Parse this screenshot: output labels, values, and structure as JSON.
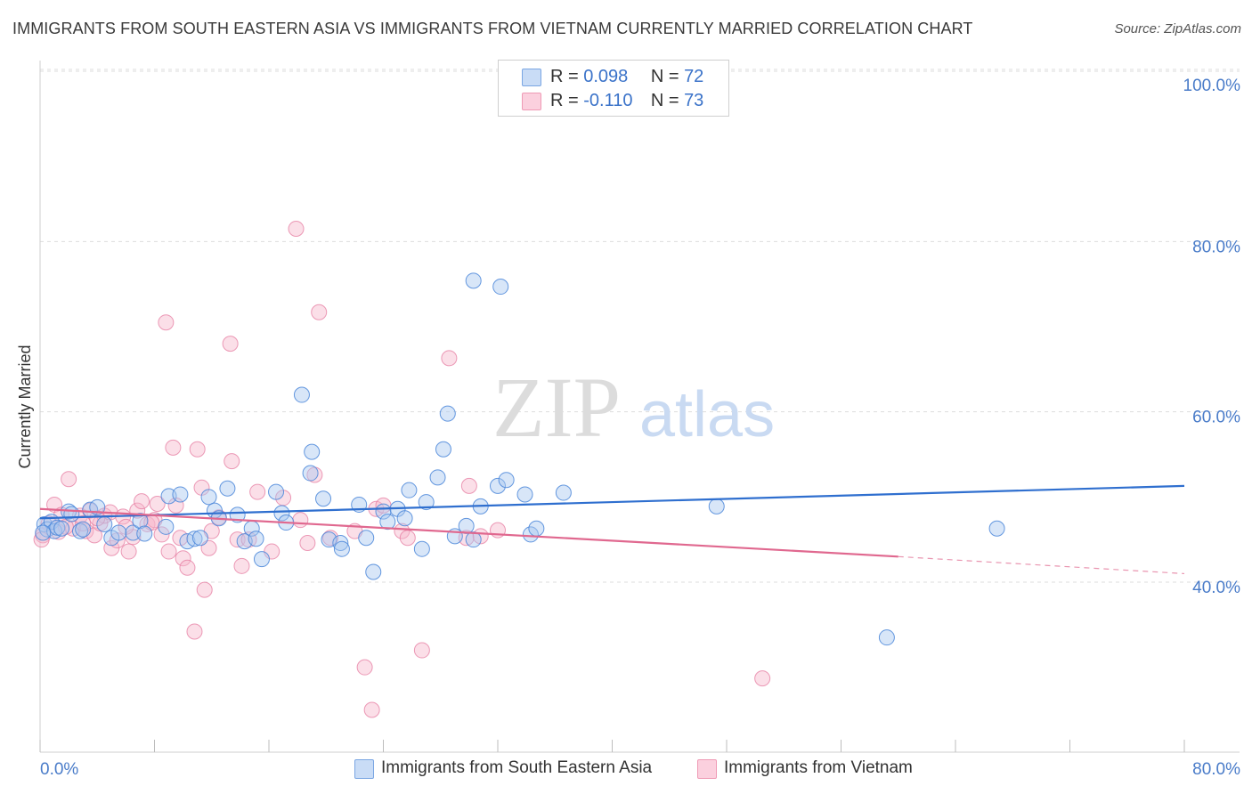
{
  "title": "IMMIGRANTS FROM SOUTH EASTERN ASIA VS IMMIGRANTS FROM VIETNAM CURRENTLY MARRIED CORRELATION CHART",
  "source": "Source: ZipAtlas.com",
  "watermark": {
    "zip": "ZIP",
    "atlas": "atlas"
  },
  "legend": {
    "rows": [
      {
        "r_label": "R =",
        "r_value": "0.098",
        "n_label": "N =",
        "n_value": "72",
        "color": "#a9c7f0"
      },
      {
        "r_label": "R =",
        "r_value": "-0.110",
        "n_label": "N =",
        "n_value": "73",
        "color": "#f7b8cc"
      }
    ]
  },
  "bottom_legend": [
    {
      "label": "Immigrants from South Eastern Asia",
      "color": "#a9c7f0"
    },
    {
      "label": "Immigrants from Vietnam",
      "color": "#f7b8cc"
    }
  ],
  "chart_data": {
    "type": "scatter",
    "title": "IMMIGRANTS FROM SOUTH EASTERN ASIA VS IMMIGRANTS FROM VIETNAM CURRENTLY MARRIED CORRELATION CHART",
    "xlabel": "",
    "ylabel": "Currently Married",
    "xlim": [
      0,
      80
    ],
    "ylim": [
      20,
      102
    ],
    "x_tick_labels": [
      "0.0%",
      "80.0%"
    ],
    "y_ticks": [
      40,
      60,
      80,
      100
    ],
    "y_tick_labels": [
      "40.0%",
      "60.0%",
      "80.0%",
      "100.0%"
    ],
    "grid": true,
    "legend_position": "top-center",
    "series": [
      {
        "name": "Immigrants from South Eastern Asia",
        "color": "#4a86d9",
        "fill": "#a9c7f0",
        "trend": {
          "x": [
            0,
            80
          ],
          "y": [
            47.5,
            51.3
          ],
          "style": "solid",
          "line_color": "#2f6fcf"
        },
        "points": [
          [
            0.3,
            46.8
          ],
          [
            0.5,
            46.2
          ],
          [
            0.8,
            47.1
          ],
          [
            1.0,
            46.0
          ],
          [
            1.2,
            46.4
          ],
          [
            1.5,
            46.3
          ],
          [
            2.0,
            48.3
          ],
          [
            2.2,
            48.0
          ],
          [
            2.8,
            46.0
          ],
          [
            3.5,
            48.5
          ],
          [
            4.0,
            48.8
          ],
          [
            4.5,
            46.8
          ],
          [
            5.0,
            45.2
          ],
          [
            5.5,
            45.8
          ],
          [
            6.5,
            45.8
          ],
          [
            7.0,
            47.2
          ],
          [
            7.3,
            45.7
          ],
          [
            8.8,
            46.5
          ],
          [
            9.0,
            50.1
          ],
          [
            9.8,
            50.3
          ],
          [
            10.3,
            44.8
          ],
          [
            10.8,
            45.1
          ],
          [
            11.2,
            45.2
          ],
          [
            11.8,
            50.0
          ],
          [
            12.2,
            48.4
          ],
          [
            12.5,
            47.5
          ],
          [
            13.1,
            51.0
          ],
          [
            13.8,
            47.9
          ],
          [
            14.3,
            44.8
          ],
          [
            14.8,
            46.3
          ],
          [
            15.1,
            45.1
          ],
          [
            15.5,
            42.7
          ],
          [
            16.5,
            50.6
          ],
          [
            16.9,
            48.1
          ],
          [
            17.2,
            47.0
          ],
          [
            18.3,
            62.0
          ],
          [
            18.9,
            52.8
          ],
          [
            19.0,
            55.3
          ],
          [
            19.8,
            49.8
          ],
          [
            20.2,
            45.0
          ],
          [
            21.0,
            44.6
          ],
          [
            21.1,
            43.9
          ],
          [
            22.3,
            49.1
          ],
          [
            22.8,
            45.2
          ],
          [
            23.3,
            41.2
          ],
          [
            24.0,
            48.3
          ],
          [
            24.3,
            47.1
          ],
          [
            25.0,
            48.6
          ],
          [
            25.5,
            47.5
          ],
          [
            25.8,
            50.8
          ],
          [
            26.7,
            43.9
          ],
          [
            27.0,
            49.4
          ],
          [
            27.8,
            52.3
          ],
          [
            28.2,
            55.6
          ],
          [
            28.5,
            59.8
          ],
          [
            29.0,
            45.4
          ],
          [
            29.8,
            46.6
          ],
          [
            30.3,
            45.0
          ],
          [
            30.8,
            48.9
          ],
          [
            30.3,
            75.4
          ],
          [
            32.0,
            51.3
          ],
          [
            32.2,
            74.7
          ],
          [
            32.6,
            52.0
          ],
          [
            33.9,
            50.3
          ],
          [
            34.3,
            45.6
          ],
          [
            34.7,
            46.3
          ],
          [
            36.6,
            50.5
          ],
          [
            47.3,
            48.9
          ],
          [
            59.2,
            33.5
          ],
          [
            66.9,
            46.3
          ],
          [
            0.2,
            45.8
          ],
          [
            3.0,
            46.2
          ]
        ]
      },
      {
        "name": "Immigrants from Vietnam",
        "color": "#e57ba0",
        "fill": "#f7b8cc",
        "trend": {
          "x": [
            0,
            60,
            80
          ],
          "y": [
            48.6,
            43.0,
            41.0
          ],
          "style": "solid-then-dashed",
          "line_color": "#e0688f"
        },
        "points": [
          [
            0.2,
            45.5
          ],
          [
            0.6,
            46.9
          ],
          [
            1.0,
            49.1
          ],
          [
            1.3,
            45.9
          ],
          [
            1.5,
            47.9
          ],
          [
            2.0,
            52.1
          ],
          [
            2.3,
            46.3
          ],
          [
            2.8,
            47.8
          ],
          [
            3.2,
            46.0
          ],
          [
            3.5,
            48.4
          ],
          [
            3.8,
            45.5
          ],
          [
            4.2,
            46.9
          ],
          [
            4.5,
            47.8
          ],
          [
            4.9,
            48.2
          ],
          [
            5.0,
            44.0
          ],
          [
            5.4,
            44.9
          ],
          [
            5.8,
            47.7
          ],
          [
            6.2,
            43.6
          ],
          [
            6.5,
            45.3
          ],
          [
            6.8,
            48.4
          ],
          [
            7.1,
            49.5
          ],
          [
            7.5,
            46.8
          ],
          [
            8.0,
            47.3
          ],
          [
            8.2,
            49.2
          ],
          [
            8.5,
            45.6
          ],
          [
            8.8,
            70.5
          ],
          [
            9.0,
            43.6
          ],
          [
            9.3,
            55.8
          ],
          [
            9.8,
            45.2
          ],
          [
            10.0,
            42.8
          ],
          [
            10.3,
            41.7
          ],
          [
            10.8,
            34.2
          ],
          [
            11.0,
            55.6
          ],
          [
            11.3,
            51.1
          ],
          [
            11.5,
            39.1
          ],
          [
            11.8,
            44.0
          ],
          [
            12.5,
            47.6
          ],
          [
            13.3,
            68.0
          ],
          [
            13.4,
            54.2
          ],
          [
            13.8,
            45.0
          ],
          [
            14.1,
            41.9
          ],
          [
            14.6,
            45.0
          ],
          [
            15.2,
            50.6
          ],
          [
            16.2,
            43.6
          ],
          [
            17.0,
            49.9
          ],
          [
            17.9,
            81.5
          ],
          [
            18.2,
            47.3
          ],
          [
            18.7,
            44.6
          ],
          [
            19.2,
            52.6
          ],
          [
            19.5,
            71.7
          ],
          [
            20.3,
            45.2
          ],
          [
            22.0,
            46.0
          ],
          [
            22.7,
            30.0
          ],
          [
            23.2,
            25.0
          ],
          [
            23.5,
            48.6
          ],
          [
            24.0,
            49.0
          ],
          [
            25.3,
            46.0
          ],
          [
            25.7,
            45.2
          ],
          [
            26.7,
            32.0
          ],
          [
            28.6,
            66.3
          ],
          [
            29.8,
            45.2
          ],
          [
            30.0,
            51.3
          ],
          [
            30.8,
            45.4
          ],
          [
            32.0,
            46.1
          ],
          [
            50.5,
            28.7
          ],
          [
            0.1,
            45.0
          ],
          [
            1.8,
            46.5
          ],
          [
            3.0,
            46.9
          ],
          [
            4.0,
            47.5
          ],
          [
            6.0,
            46.5
          ],
          [
            7.8,
            47.0
          ],
          [
            9.5,
            49.0
          ],
          [
            12.0,
            46.0
          ]
        ]
      }
    ]
  }
}
